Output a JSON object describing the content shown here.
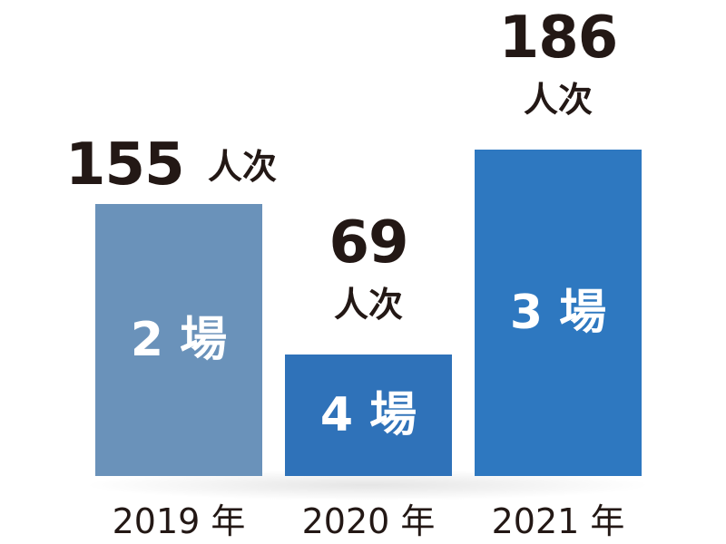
{
  "chart_data": {
    "type": "bar",
    "categories": [
      "2019 年",
      "2020 年",
      "2021 年"
    ],
    "values": [
      155,
      69,
      186
    ],
    "value_unit": "人次",
    "sessions": [
      "2 場",
      "4 場",
      "3 場"
    ],
    "colors": [
      "#6a92ba",
      "#2f72b9",
      "#2e78c0"
    ],
    "text_color": "#231815",
    "ylim": [
      0,
      186
    ],
    "grid": false,
    "legend": "none"
  }
}
